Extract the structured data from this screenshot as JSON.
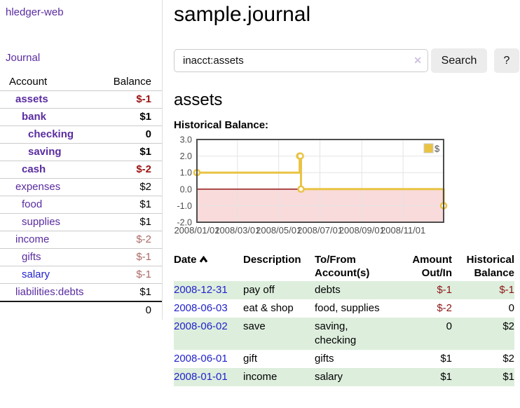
{
  "app": {
    "brand": "hledger-web",
    "nav_journal": "Journal"
  },
  "sidebar": {
    "columns": {
      "account": "Account",
      "balance": "Balance"
    },
    "accounts": [
      {
        "name": "assets",
        "depth": 1,
        "bold": true,
        "balance": "$-1",
        "negative": true
      },
      {
        "name": "bank",
        "depth": 2,
        "bold": true,
        "balance": "$1",
        "negative": false
      },
      {
        "name": "checking",
        "depth": 3,
        "bold": true,
        "balance": "0",
        "negative": false
      },
      {
        "name": "saving",
        "depth": 3,
        "bold": true,
        "balance": "$1",
        "negative": false
      },
      {
        "name": "cash",
        "depth": 2,
        "bold": true,
        "balance": "$-2",
        "negative": true
      },
      {
        "name": "expenses",
        "depth": 1,
        "bold": false,
        "balance": "$2",
        "negative": false
      },
      {
        "name": "food",
        "depth": 2,
        "bold": false,
        "balance": "$1",
        "negative": false
      },
      {
        "name": "supplies",
        "depth": 2,
        "bold": false,
        "balance": "$1",
        "negative": false
      },
      {
        "name": "income",
        "depth": 1,
        "bold": false,
        "balance": "$-2",
        "negative": true
      },
      {
        "name": "gifts",
        "depth": 2,
        "bold": false,
        "balance": "$-1",
        "negative": true
      },
      {
        "name": "salary",
        "depth": 2,
        "bold": false,
        "balance": "$-1",
        "negative": true,
        "unvisited": true
      },
      {
        "name": "liabilities:debts",
        "depth": 1,
        "bold": false,
        "balance": "$1",
        "negative": false
      }
    ],
    "total": "0"
  },
  "main": {
    "title": "sample.journal",
    "search": {
      "value": "inacct:assets",
      "clear_icon": "✕",
      "button": "Search",
      "help_button": "?"
    },
    "account_heading": "assets",
    "chart_heading": "Historical Balance:"
  },
  "chart_data": {
    "type": "line",
    "title": "Historical Balance:",
    "xlabel": "",
    "ylabel": "",
    "xlim": [
      "2008-01-01",
      "2008-12-31"
    ],
    "ylim": [
      -2,
      3
    ],
    "x_ticks": [
      "2008/01/01",
      "2008/03/01",
      "2008/05/01",
      "2008/07/01",
      "2008/09/01",
      "2008/11/01"
    ],
    "y_ticks": [
      "3.0",
      "2.0",
      "1.0",
      "0.0",
      "-1.0",
      "-2.0"
    ],
    "grid": true,
    "legend": {
      "label": "$",
      "position": "top-right"
    },
    "series": [
      {
        "name": "$",
        "color": "#e9c343",
        "step": true,
        "points": [
          [
            "2008-01-01",
            1
          ],
          [
            "2008-06-01",
            1
          ],
          [
            "2008-06-01",
            2
          ],
          [
            "2008-06-03",
            2
          ],
          [
            "2008-06-03",
            0
          ],
          [
            "2008-12-31",
            0
          ],
          [
            "2008-12-31",
            -1
          ]
        ],
        "markers": [
          [
            "2008-01-01",
            1
          ],
          [
            "2008-06-01",
            2
          ],
          [
            "2008-06-02",
            2
          ],
          [
            "2008-06-03",
            0
          ],
          [
            "2008-12-31",
            -1
          ]
        ]
      }
    ],
    "colors": {
      "negative_region": "#f9dbdb",
      "zero_line": "#8b0000",
      "border": "#4d4d4d",
      "gridline": "#e4e4e4"
    }
  },
  "register_table": {
    "columns": [
      "Date",
      "Description",
      "To/From Account(s)",
      "Amount Out/In",
      "Historical Balance"
    ],
    "rows": [
      {
        "date": "2008-12-31",
        "description": "pay off",
        "accounts": "debts",
        "amount": "$-1",
        "balance": "$-1"
      },
      {
        "date": "2008-06-03",
        "description": "eat & shop",
        "accounts": "food, supplies",
        "amount": "$-2",
        "balance": "0"
      },
      {
        "date": "2008-06-02",
        "description": "save",
        "accounts": "saving,\nchecking",
        "amount": "0",
        "balance": "$2"
      },
      {
        "date": "2008-06-01",
        "description": "gift",
        "accounts": "gifts",
        "amount": "$1",
        "balance": "$2"
      },
      {
        "date": "2008-01-01",
        "description": "income",
        "accounts": "salary",
        "amount": "$1",
        "balance": "$1"
      }
    ]
  },
  "colors": {
    "link_purple": "#5a2ca0",
    "link_blue": "#2222cc",
    "negative_bold": "#9c1111",
    "negative_muted": "#ab6a66",
    "negative_table": "#8e1414",
    "row_green": "#ddeedd",
    "series_gold": "#e9c343"
  }
}
